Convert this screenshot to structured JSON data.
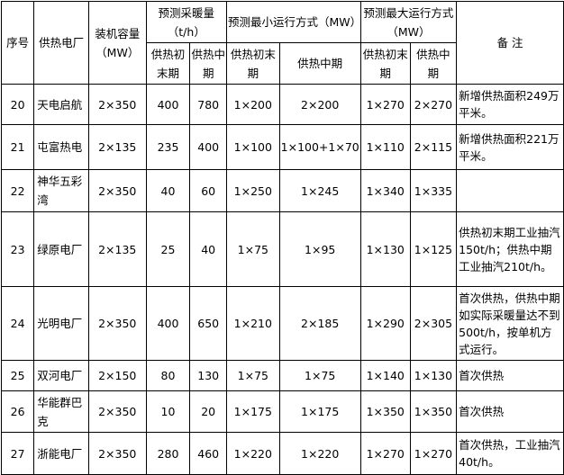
{
  "headers": {
    "no": "序号",
    "plant": "供热电厂",
    "capacity": "装机容量（MW）",
    "heat": "预测采暖量（t/h）",
    "min_mode": "预测最小运行方式（MW）",
    "max_mode": "预测最大运行方式（MW）",
    "note": "备 注",
    "heat_early": "供热初末期",
    "heat_mid": "供热中期",
    "min_early": "供热初末期",
    "min_mid": "供热中期",
    "max_early": "供热初末期",
    "max_mid": "供热中期"
  },
  "rows": [
    {
      "no": "20",
      "plant": "天电启航",
      "capacity": "2×350",
      "heat_early": "400",
      "heat_mid": "780",
      "min_early": "1×200",
      "min_mid": "2×200",
      "max_early": "1×270",
      "max_mid": "2×270",
      "note": "新增供热面积249万平米。"
    },
    {
      "no": "21",
      "plant": "屯富热电",
      "capacity": "2×135",
      "heat_early": "235",
      "heat_mid": "400",
      "min_early": "1×100",
      "min_mid": "1×100+1×70",
      "max_early": "1×110",
      "max_mid": "2×115",
      "note": "新增供热面积221万平米。"
    },
    {
      "no": "22",
      "plant": "神华五彩湾",
      "capacity": "2×350",
      "heat_early": "40",
      "heat_mid": "60",
      "min_early": "1×250",
      "min_mid": "1×245",
      "max_early": "1×340",
      "max_mid": "1×335",
      "note": ""
    },
    {
      "no": "23",
      "plant": "绿原电厂",
      "capacity": "2×135",
      "heat_early": "25",
      "heat_mid": "40",
      "min_early": "1×75",
      "min_mid": "1×95",
      "max_early": "1×130",
      "max_mid": "1×125",
      "note": "供热初末期工业抽汽150t/h；供热中期工业抽汽210t/h。"
    },
    {
      "no": "24",
      "plant": "光明电厂",
      "capacity": "2×350",
      "heat_early": "400",
      "heat_mid": "650",
      "min_early": "1×210",
      "min_mid": "2×185",
      "max_early": "1×290",
      "max_mid": "2×305",
      "note": "首次供热，供热中期如实际采暖量达不到500t/h，按单机方式运行。"
    },
    {
      "no": "25",
      "plant": "双河电厂",
      "capacity": "2×150",
      "heat_early": "80",
      "heat_mid": "130",
      "min_early": "1×75",
      "min_mid": "1×75",
      "max_early": "1×140",
      "max_mid": "1×130",
      "note": "首次供热"
    },
    {
      "no": "26",
      "plant": "华能群巴克",
      "capacity": "2×350",
      "heat_early": "10",
      "heat_mid": "20",
      "min_early": "1×175",
      "min_mid": "1×175",
      "max_early": "1×350",
      "max_mid": "1×350",
      "note": "首次供热"
    },
    {
      "no": "27",
      "plant": "浙能电厂",
      "capacity": "2×350",
      "heat_early": "280",
      "heat_mid": "460",
      "min_early": "1×220",
      "min_mid": "1×220",
      "max_early": "1×270",
      "max_mid": "1×270",
      "note": "首次供热，工业抽汽40t/h。"
    }
  ]
}
